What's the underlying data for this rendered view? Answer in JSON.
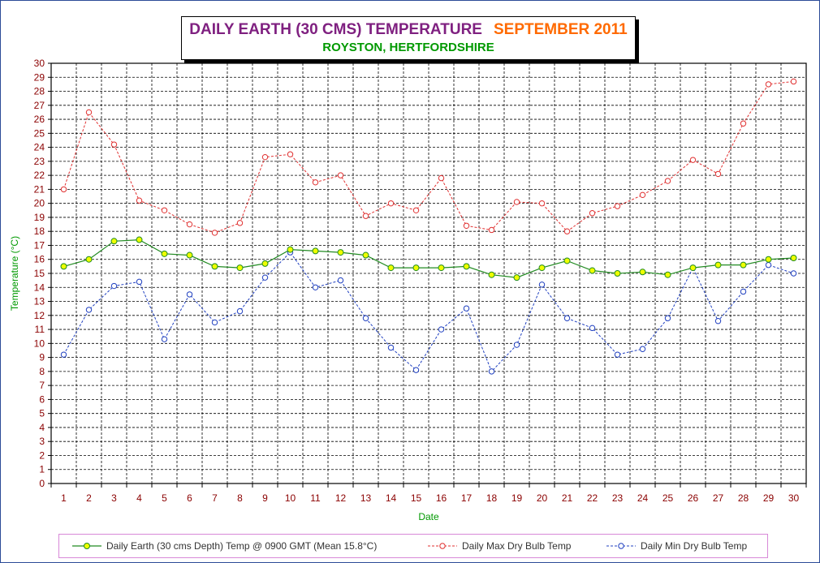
{
  "title": {
    "main": "DAILY EARTH (30 CMS) TEMPERATURE",
    "month": "SEPTEMBER 2011",
    "subtitle": "ROYSTON, HERTFORDSHIRE"
  },
  "legend": {
    "earth": "Daily Earth (30 cms Depth) Temp @ 0900 GMT (Mean 15.8°C)",
    "max": "Daily Max Dry Bulb Temp",
    "min": "Daily Min Dry Bulb Temp"
  },
  "colors": {
    "earth": "#228b22",
    "earth_marker": "#eeff00",
    "max": "#e03030",
    "min": "#2040c0",
    "tick_text": "#8b0000",
    "axis_label": "#009900"
  },
  "chart_data": {
    "type": "line",
    "xlabel": "Date",
    "ylabel": "Temperature (°C)",
    "ylim": [
      0,
      30
    ],
    "grid": true,
    "legend_position": "bottom",
    "x": [
      1,
      2,
      3,
      4,
      5,
      6,
      7,
      8,
      9,
      10,
      11,
      12,
      13,
      14,
      15,
      16,
      17,
      18,
      19,
      20,
      21,
      22,
      23,
      24,
      25,
      26,
      27,
      28,
      29,
      30
    ],
    "series": [
      {
        "name": "Daily Earth (30 cms Depth) Temp @ 0900 GMT (Mean 15.8°C)",
        "key": "earth",
        "values": [
          15.5,
          16.0,
          17.3,
          17.4,
          16.4,
          16.3,
          15.5,
          15.4,
          15.7,
          16.7,
          16.6,
          16.5,
          16.3,
          15.4,
          15.4,
          15.4,
          15.5,
          14.9,
          14.7,
          15.4,
          15.9,
          15.2,
          15.0,
          15.1,
          14.9,
          15.4,
          15.6,
          15.6,
          16.0,
          16.1
        ]
      },
      {
        "name": "Daily Max Dry Bulb Temp",
        "key": "max",
        "values": [
          21.0,
          26.5,
          24.2,
          20.2,
          19.5,
          18.5,
          17.9,
          18.6,
          23.3,
          23.5,
          21.5,
          22.0,
          19.1,
          20.0,
          19.5,
          21.8,
          18.4,
          18.1,
          20.1,
          20.0,
          18.0,
          19.3,
          19.8,
          20.6,
          21.6,
          23.1,
          22.1,
          25.7,
          28.5,
          28.7
        ]
      },
      {
        "name": "Daily Min Dry Bulb Temp",
        "key": "min",
        "values": [
          9.2,
          12.4,
          14.1,
          14.4,
          10.3,
          13.5,
          11.5,
          12.3,
          14.7,
          16.5,
          14.0,
          14.5,
          11.8,
          9.7,
          8.1,
          11.0,
          12.5,
          8.0,
          9.9,
          14.2,
          11.8,
          11.1,
          9.2,
          9.6,
          11.8,
          15.4,
          11.6,
          13.7,
          15.6,
          15.0
        ]
      }
    ]
  }
}
